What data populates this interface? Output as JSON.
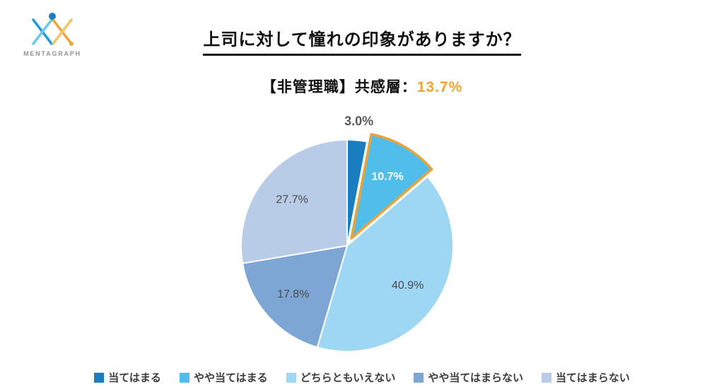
{
  "logo": {
    "text": "MENTAGRAPH"
  },
  "header": {
    "title": "上司に対して憧れの印象がありますか？",
    "subtitle_prefix": "【非管理職】共感層：",
    "subtitle_value": "13.7%"
  },
  "colors": {
    "accent_orange": "#F0A330",
    "highlight_outline": "#E8A33D",
    "label_gray": "#595959",
    "title_black": "#111111"
  },
  "chart_data": {
    "type": "pie",
    "title": "上司に対して憧れの印象がありますか？",
    "subtitle": "【非管理職】共感層：13.7%",
    "start_angle_deg": 0,
    "direction": "clockwise",
    "legend_position": "bottom",
    "slices": [
      {
        "label": "当てはまる",
        "value": 3.0,
        "pct_label": "3.0%",
        "color": "#1A7DC0",
        "label_pos": "outside",
        "label_color": "#595959",
        "bold": true
      },
      {
        "label": "やや当てはまる",
        "value": 10.7,
        "pct_label": "10.7%",
        "color": "#4FBEEA",
        "label_pos": "inside",
        "label_color": "#FFFFFF",
        "bold": true,
        "exploded": true,
        "outline_color": "#E8A33D"
      },
      {
        "label": "どちらともいえない",
        "value": 40.9,
        "pct_label": "40.9%",
        "color": "#9ED7F4",
        "label_pos": "inside",
        "label_color": "#4a4a4a",
        "bold": false
      },
      {
        "label": "やや当てはまらない",
        "value": 17.8,
        "pct_label": "17.8%",
        "color": "#7EA6D4",
        "label_pos": "inside",
        "label_color": "#4a4a4a",
        "bold": false
      },
      {
        "label": "当てはまらない",
        "value": 27.7,
        "pct_label": "27.7%",
        "color": "#B9CCE7",
        "label_pos": "inside",
        "label_color": "#4a4a4a",
        "bold": false
      }
    ]
  }
}
